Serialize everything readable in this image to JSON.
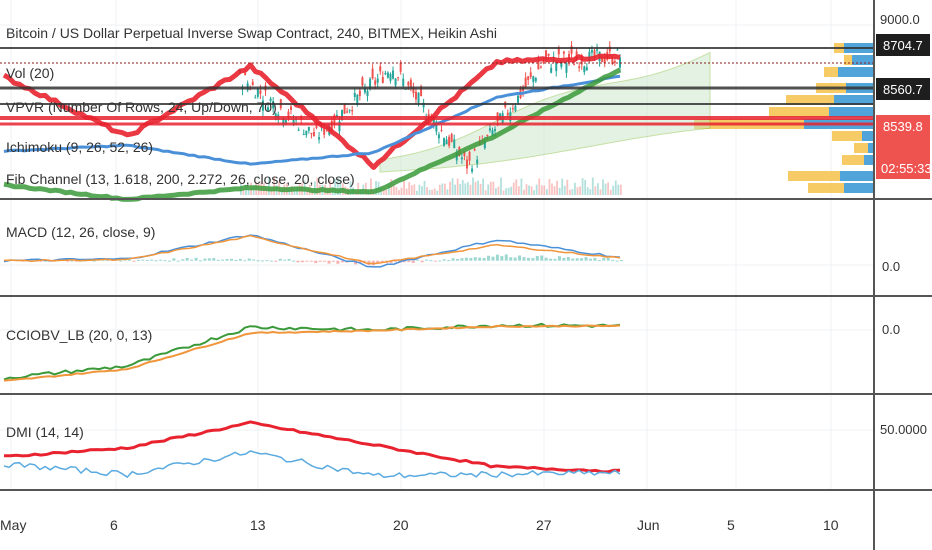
{
  "header": {
    "title": "Bitcoin / US Dollar Perpetual Inverse Swap Contract, 240, BITMEX, Heikin Ashi"
  },
  "indicators": {
    "vol": "Vol (20)",
    "vpvr": "VPVR (Number Of Rows, 24, Up/Down, 70)",
    "ichimoku": "Ichimoku (9, 26, 52, 26)",
    "fib": "Fib Channel (13, 1.618, 200, 2.272, 26, close, 20, close)",
    "macd": "MACD (12, 26, close, 9)",
    "cciobv": "CCIOBV_LB (20, 0, 13)",
    "dmi": "DMI (14, 14)"
  },
  "price_axis": {
    "main": [
      "9000.0",
      "8704.7",
      "8560.7",
      "8539.8",
      "02:55:33"
    ],
    "macd": "0.0",
    "cciobv": "0.0",
    "dmi": "50.0000"
  },
  "time_axis": [
    "May",
    "6",
    "13",
    "20",
    "27",
    "Jun",
    "5",
    "10"
  ],
  "colors": {
    "candle_up": "#26a69a",
    "candle_down": "#ef5350",
    "fib_red": "#e8232f",
    "ichimoku_green": "#3a9a3a",
    "ma_blue": "#4a90d9",
    "macd_orange": "#f0953a",
    "dmi_blue": "#5aaae0",
    "vpvr_yellow": "#f5c24a",
    "vpvr_blue": "#3e9ad6",
    "price_red": "#ef5350"
  },
  "chart_data": [
    {
      "type": "line",
      "panel": "price",
      "title": "Bitcoin / US Dollar Perpetual Inverse Swap Contract, 240, BITMEX, Heikin Ashi",
      "x": [
        "May 1",
        "May 6",
        "May 13",
        "May 20",
        "May 27",
        "May 31"
      ],
      "series": [
        {
          "values": [
            8560,
            8150,
            8630,
            7950,
            8660,
            8700
          ]
        },
        {
          "values": [
            8050,
            8090,
            7960,
            8040,
            8420,
            8560
          ]
        },
        {
          "values": [
            7820,
            7720,
            7800,
            7770,
            8160,
            8610
          ]
        }
      ],
      "horizontal_levels": [
        8704.7,
        8560.7,
        8539.8
      ],
      "ylim": [
        7750,
        9050
      ]
    },
    {
      "type": "line",
      "panel": "macd",
      "x": [
        "May 1",
        "May 6",
        "May 13",
        "May 20",
        "May 27",
        "May 31"
      ],
      "series": [
        {
          "values": [
            0,
            10,
            150,
            -40,
            120,
            20
          ]
        },
        {
          "values": [
            0,
            5,
            140,
            -20,
            90,
            15
          ]
        }
      ],
      "ylim": [
        -180,
        320
      ]
    },
    {
      "type": "line",
      "panel": "cciobv",
      "x": [
        "May 1",
        "May 6",
        "May 13",
        "May 20",
        "May 27",
        "May 31"
      ],
      "series": [
        {
          "values": [
            -900,
            -700,
            -50,
            -100,
            -20,
            -30
          ]
        },
        {
          "values": [
            -950,
            -750,
            -150,
            -110,
            -40,
            -30
          ]
        }
      ],
      "ylim": [
        -1100,
        400
      ]
    },
    {
      "type": "line",
      "panel": "dmi",
      "x": [
        "May 1",
        "May 6",
        "May 13",
        "May 20",
        "May 27",
        "May 31"
      ],
      "series": [
        {
          "values": [
            40,
            46,
            63,
            48,
            33,
            30
          ]
        },
        {
          "values": [
            35,
            28,
            43,
            27,
            28,
            29
          ]
        }
      ],
      "ylim": [
        20,
        80
      ],
      "ticks": [
        50
      ]
    }
  ]
}
